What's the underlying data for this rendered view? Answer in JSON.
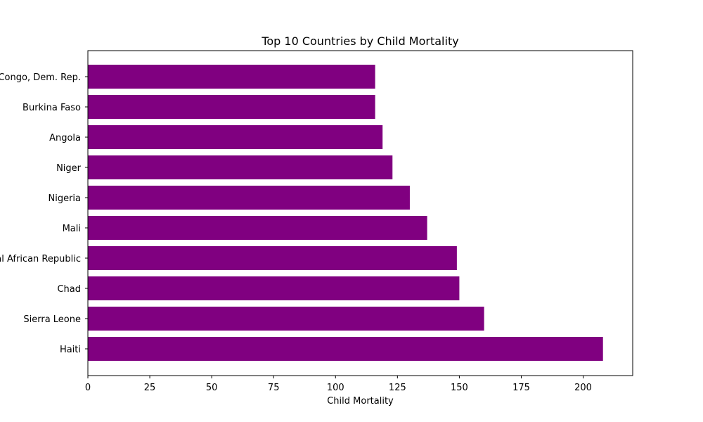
{
  "chart_data": {
    "type": "bar",
    "orientation": "horizontal",
    "title": "Top 10 Countries by Child Mortality",
    "xlabel": "Child Mortality",
    "ylabel": "",
    "categories": [
      "Haiti",
      "Sierra Leone",
      "Chad",
      "Central African Republic",
      "Mali",
      "Nigeria",
      "Niger",
      "Angola",
      "Burkina Faso",
      "Congo, Dem. Rep."
    ],
    "values": [
      208,
      160,
      150,
      149,
      137,
      130,
      123,
      119,
      116,
      116
    ],
    "xlim": [
      0,
      220
    ],
    "xticks": [
      0,
      25,
      50,
      75,
      100,
      125,
      150,
      175,
      200
    ],
    "grid": false,
    "legend": "none",
    "colors": {
      "bar": "#800080",
      "axis": "#000000",
      "background": "#ffffff"
    }
  }
}
